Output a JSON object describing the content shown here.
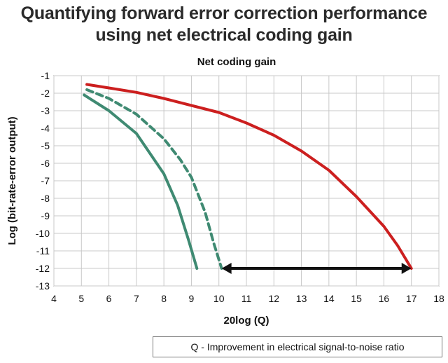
{
  "page": {
    "title_line1": "Quantifying forward error correction performance",
    "title_line2": "using net electrical coding gain",
    "note": "Q - Improvement in electrical signal-to-noise ratio"
  },
  "chart_data": {
    "type": "line",
    "title": "Net coding gain",
    "xlabel": "20log (Q)",
    "ylabel": "Log (bit-rate-error output)",
    "xlim": [
      4,
      18
    ],
    "ylim": [
      -13,
      -1
    ],
    "xticks": [
      4,
      5,
      6,
      7,
      8,
      9,
      10,
      11,
      12,
      13,
      14,
      15,
      16,
      17,
      18
    ],
    "yticks": [
      -1,
      -2,
      -3,
      -4,
      -5,
      -6,
      -7,
      -8,
      -9,
      -10,
      -11,
      -12,
      -13
    ],
    "grid": true,
    "series": [
      {
        "color": "#cc1f1f",
        "style": "solid",
        "points": [
          [
            5.2,
            -1.5
          ],
          [
            6,
            -1.7
          ],
          [
            7,
            -1.95
          ],
          [
            8,
            -2.3
          ],
          [
            9,
            -2.7
          ],
          [
            10,
            -3.1
          ],
          [
            11,
            -3.7
          ],
          [
            12,
            -4.4
          ],
          [
            13,
            -5.3
          ],
          [
            14,
            -6.4
          ],
          [
            15,
            -7.9
          ],
          [
            16,
            -9.6
          ],
          [
            16.5,
            -10.7
          ],
          [
            17,
            -12
          ]
        ]
      },
      {
        "color": "#3f8a72",
        "style": "dashed",
        "points": [
          [
            5.2,
            -1.8
          ],
          [
            6,
            -2.3
          ],
          [
            7,
            -3.2
          ],
          [
            8,
            -4.6
          ],
          [
            8.6,
            -5.8
          ],
          [
            9,
            -6.8
          ],
          [
            9.5,
            -8.8
          ],
          [
            9.8,
            -10.5
          ],
          [
            10.1,
            -12
          ]
        ]
      },
      {
        "color": "#3f8a72",
        "style": "solid",
        "points": [
          [
            5.1,
            -2.1
          ],
          [
            6,
            -3
          ],
          [
            7,
            -4.3
          ],
          [
            8,
            -6.6
          ],
          [
            8.5,
            -8.4
          ],
          [
            8.9,
            -10.4
          ],
          [
            9.2,
            -12
          ]
        ]
      }
    ],
    "annotations": [
      {
        "type": "double-arrow",
        "from": [
          10.1,
          -12
        ],
        "to": [
          17,
          -12
        ],
        "color": "#111111"
      }
    ]
  }
}
